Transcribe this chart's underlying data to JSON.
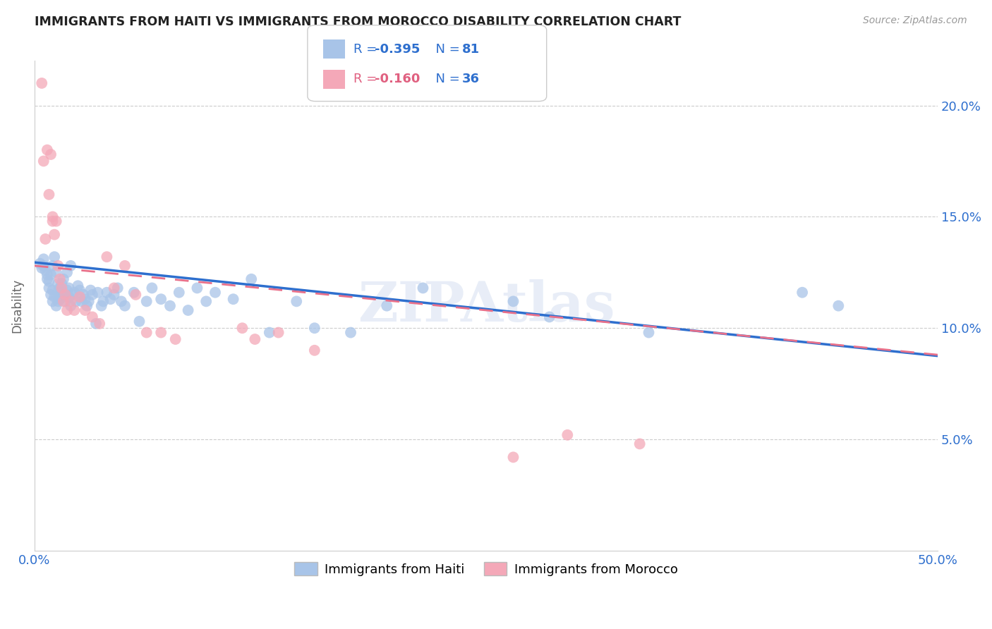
{
  "title": "IMMIGRANTS FROM HAITI VS IMMIGRANTS FROM MOROCCO DISABILITY CORRELATION CHART",
  "source": "Source: ZipAtlas.com",
  "ylabel": "Disability",
  "xmin": 0.0,
  "xmax": 0.5,
  "ymin": 0.0,
  "ymax": 0.22,
  "yticks": [
    0.05,
    0.1,
    0.15,
    0.2
  ],
  "ytick_labels": [
    "5.0%",
    "10.0%",
    "15.0%",
    "20.0%"
  ],
  "xticks": [
    0.0,
    0.1,
    0.2,
    0.3,
    0.4,
    0.5
  ],
  "haiti_color": "#a8c4e8",
  "morocco_color": "#f4a8b8",
  "haiti_line_color": "#2e6fce",
  "morocco_line_color": "#e8708a",
  "watermark": "ZIPAtlas",
  "haiti_R": "-0.395",
  "haiti_N": "81",
  "morocco_R": "-0.160",
  "morocco_N": "36",
  "haiti_x": [
    0.003,
    0.004,
    0.005,
    0.005,
    0.006,
    0.007,
    0.007,
    0.008,
    0.008,
    0.009,
    0.009,
    0.01,
    0.01,
    0.01,
    0.011,
    0.011,
    0.012,
    0.012,
    0.013,
    0.013,
    0.013,
    0.014,
    0.014,
    0.015,
    0.015,
    0.016,
    0.016,
    0.017,
    0.017,
    0.018,
    0.018,
    0.019,
    0.019,
    0.02,
    0.02,
    0.021,
    0.022,
    0.023,
    0.024,
    0.025,
    0.026,
    0.027,
    0.028,
    0.029,
    0.03,
    0.031,
    0.032,
    0.034,
    0.035,
    0.037,
    0.038,
    0.04,
    0.042,
    0.044,
    0.046,
    0.048,
    0.05,
    0.055,
    0.058,
    0.062,
    0.065,
    0.07,
    0.075,
    0.08,
    0.085,
    0.09,
    0.095,
    0.1,
    0.11,
    0.12,
    0.13,
    0.145,
    0.155,
    0.175,
    0.195,
    0.215,
    0.265,
    0.285,
    0.34,
    0.425,
    0.445
  ],
  "haiti_y": [
    0.129,
    0.127,
    0.131,
    0.128,
    0.126,
    0.122,
    0.124,
    0.118,
    0.121,
    0.124,
    0.115,
    0.117,
    0.112,
    0.128,
    0.132,
    0.114,
    0.11,
    0.125,
    0.116,
    0.12,
    0.112,
    0.118,
    0.113,
    0.116,
    0.12,
    0.115,
    0.122,
    0.115,
    0.112,
    0.117,
    0.125,
    0.114,
    0.118,
    0.11,
    0.128,
    0.115,
    0.116,
    0.112,
    0.119,
    0.117,
    0.112,
    0.115,
    0.113,
    0.11,
    0.112,
    0.117,
    0.115,
    0.102,
    0.116,
    0.11,
    0.112,
    0.116,
    0.113,
    0.115,
    0.118,
    0.112,
    0.11,
    0.116,
    0.103,
    0.112,
    0.118,
    0.113,
    0.11,
    0.116,
    0.108,
    0.118,
    0.112,
    0.116,
    0.113,
    0.122,
    0.098,
    0.112,
    0.1,
    0.098,
    0.11,
    0.118,
    0.112,
    0.105,
    0.098,
    0.116,
    0.11
  ],
  "morocco_x": [
    0.004,
    0.005,
    0.006,
    0.007,
    0.008,
    0.009,
    0.01,
    0.01,
    0.011,
    0.012,
    0.013,
    0.014,
    0.015,
    0.016,
    0.017,
    0.018,
    0.02,
    0.022,
    0.025,
    0.028,
    0.032,
    0.036,
    0.04,
    0.044,
    0.05,
    0.056,
    0.062,
    0.07,
    0.078,
    0.115,
    0.122,
    0.135,
    0.155,
    0.265,
    0.295,
    0.335
  ],
  "morocco_y": [
    0.21,
    0.175,
    0.14,
    0.18,
    0.16,
    0.178,
    0.15,
    0.148,
    0.142,
    0.148,
    0.128,
    0.122,
    0.118,
    0.112,
    0.115,
    0.108,
    0.112,
    0.108,
    0.114,
    0.108,
    0.105,
    0.102,
    0.132,
    0.118,
    0.128,
    0.115,
    0.098,
    0.098,
    0.095,
    0.1,
    0.095,
    0.098,
    0.09,
    0.042,
    0.052,
    0.048
  ],
  "haiti_line_start_x": 0.0,
  "haiti_line_start_y": 0.1295,
  "haiti_line_end_x": 0.5,
  "haiti_line_end_y": 0.0875,
  "morocco_line_start_x": 0.0,
  "morocco_line_start_y": 0.128,
  "morocco_line_end_x": 0.5,
  "morocco_line_end_y": 0.088
}
